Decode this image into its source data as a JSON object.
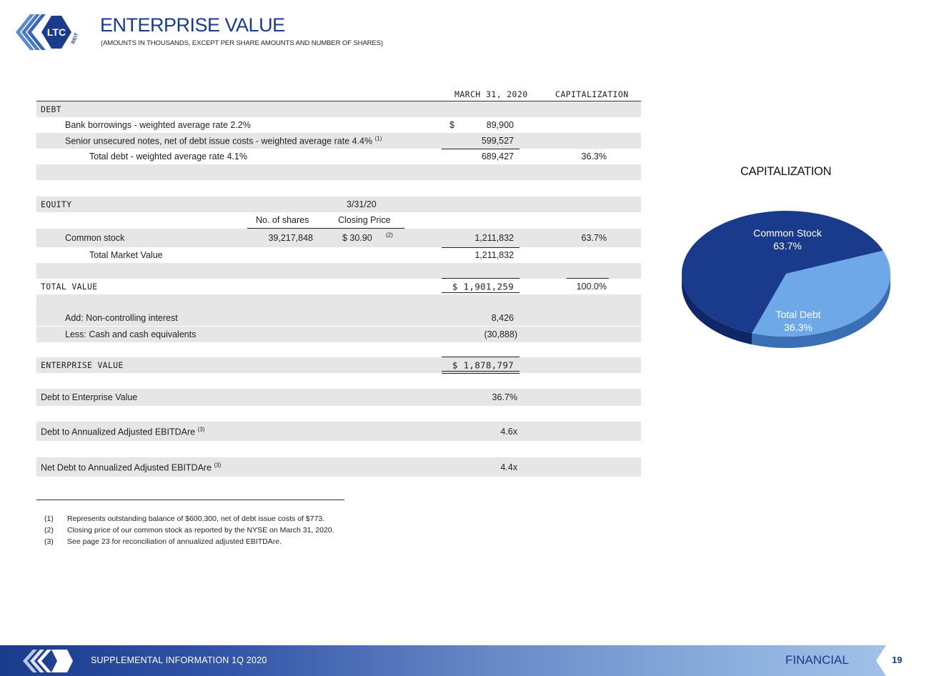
{
  "header": {
    "logo_text": "LTC",
    "logo_subtext": "REIT",
    "title": "ENTERPRISE VALUE",
    "subtitle": "(AMOUNTS IN THOUSANDS, EXCEPT PER SHARE AMOUNTS AND NUMBER OF SHARES)"
  },
  "table": {
    "col_date": "MARCH 31, 2020",
    "col_cap": "CAPITALIZATION",
    "debt_heading": "DEBT",
    "bank_label": "Bank borrowings - weighted average rate 2.2%",
    "bank_dollar": "$",
    "bank_amount": "89,900",
    "senior_label": "Senior unsecured notes, net of debt issue costs - weighted average rate 4.4%",
    "senior_note": "(1)",
    "senior_amount": "599,527",
    "total_debt_label": "Total debt - weighted average rate 4.1%",
    "total_debt_amount": "689,427",
    "total_debt_cap": "36.3%",
    "equity_heading": "EQUITY",
    "equity_date": "3/31/20",
    "shares_header": "No. of shares",
    "price_header": "Closing Price",
    "common_label": "Common stock",
    "common_shares": "39,217,848",
    "common_price": "$  30.90",
    "common_price_note": "(2)",
    "common_amount": "1,211,832",
    "common_cap": "63.7%",
    "tmv_label": "Total Market Value",
    "tmv_amount": "1,211,832",
    "total_value_label": "TOTAL VALUE",
    "total_value_amount": "$ 1,901,259",
    "total_value_cap": "100.0%",
    "nci_label": "Add:  Non-controlling interest",
    "nci_amount": "8,426",
    "cash_label": "Less:  Cash and cash equivalents",
    "cash_amount": "(30,888)",
    "ev_label": "ENTERPRISE VALUE",
    "ev_amount": "$ 1,878,797",
    "dtev_label": "Debt to Enterprise Value",
    "dtev_value": "36.7%",
    "dte_label": "Debt to Annualized Adjusted EBITDAre",
    "dte_note": "(3)",
    "dte_value": "4.6x",
    "ndte_label": "Net Debt to Annualized Adjusted EBITDAre",
    "ndte_note": "(3)",
    "ndte_value": "4.4x"
  },
  "footnotes": [
    {
      "num": "(1)",
      "text": "Represents outstanding balance of $600,300, net of debt issue costs of $773."
    },
    {
      "num": "(2)",
      "text": "Closing price of our common stock as reported by the NYSE on March 31, 2020."
    },
    {
      "num": "(3)",
      "text": "See page 23 for reconciliation of annualized adjusted EBITDAre."
    }
  ],
  "chart": {
    "title": "CAPITALIZATION",
    "colors": {
      "common": "#1a3a8c",
      "debt": "#6fa8e8"
    },
    "slices": [
      {
        "name": "Common Stock",
        "value": 63.7,
        "label": "63.7%"
      },
      {
        "name": "Total Debt",
        "value": 36.3,
        "label": "36.3%"
      }
    ]
  },
  "chart_data": {
    "type": "pie",
    "title": "CAPITALIZATION",
    "categories": [
      "Common Stock",
      "Total Debt"
    ],
    "values": [
      63.7,
      36.3
    ]
  },
  "footer": {
    "text": "SUPPLEMENTAL INFORMATION  1Q 2020",
    "section": "FINANCIAL",
    "page": "19"
  }
}
